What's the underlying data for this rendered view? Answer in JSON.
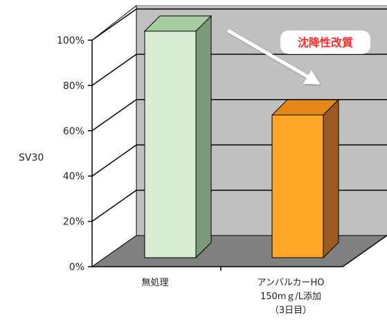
{
  "chart_data": {
    "type": "bar",
    "categories": [
      [
        "無処理"
      ],
      [
        "アンバルカーHO",
        "150mｇ/L添加",
        "（3日目）"
      ]
    ],
    "values": [
      100,
      63
    ],
    "ylabel": "SV30",
    "ylim": [
      0,
      100
    ],
    "yticks": [
      0,
      20,
      40,
      60,
      80,
      100
    ],
    "ytick_labels": [
      "0%",
      "20%",
      "40%",
      "60%",
      "80%",
      "100%"
    ],
    "grid": true,
    "bar_colors": [
      {
        "front": "#d8ecd4",
        "top": "#a7cca0",
        "side": "#7a9a78"
      },
      {
        "front": "#ffa629",
        "top": "#e48918",
        "side": "#9a5a22"
      }
    ],
    "annotation": {
      "text": "沈降性改質",
      "color": "#ff2a2a",
      "arrow": "white",
      "direction": "down-right"
    }
  }
}
